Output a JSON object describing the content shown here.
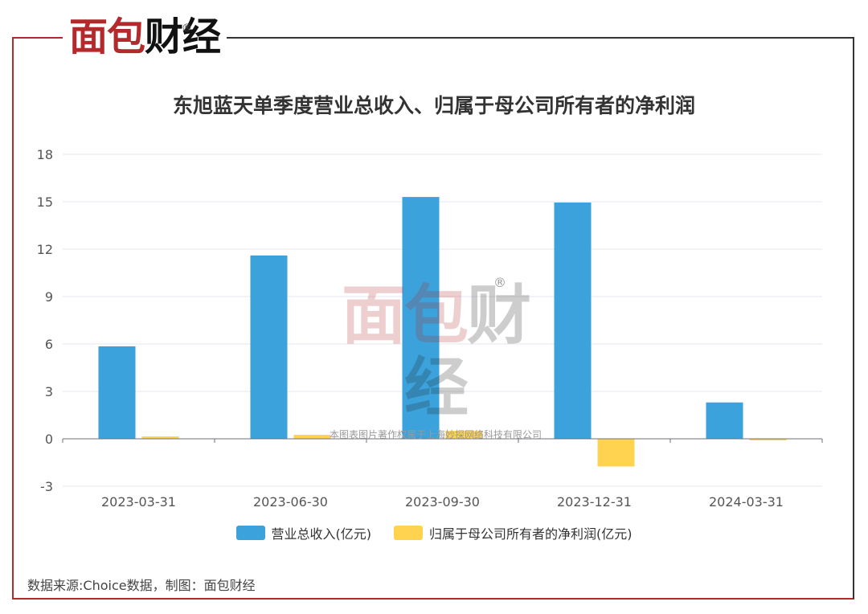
{
  "brand": {
    "logo_part1": "面包",
    "logo_part2": "财经",
    "registered": "®"
  },
  "watermark": {
    "logo_part1": "面包",
    "logo_part2": "财经",
    "registered": "®",
    "copyright": "本图表图片著作权属于上海妙探网络科技有限公司"
  },
  "source_note": "数据来源:Choice数据，制图：面包财经",
  "colors": {
    "revenue": "#3ba2dc",
    "net_profit": "#ffd350",
    "brand_red": "#b3292c"
  },
  "chart_data": {
    "type": "bar",
    "title": "东旭蓝天单季度营业总收入、归属于母公司所有者的净利润",
    "xlabel": "",
    "ylabel": "",
    "categories": [
      "2023-03-31",
      "2023-06-30",
      "2023-09-30",
      "2023-12-31",
      "2024-03-31"
    ],
    "series": [
      {
        "name": "营业总收入(亿元)",
        "values": [
          5.85,
          11.6,
          15.3,
          14.95,
          2.3
        ]
      },
      {
        "name": "归属于母公司所有者的净利润(亿元)",
        "values": [
          0.15,
          0.25,
          0.5,
          -1.75,
          -0.1
        ]
      }
    ],
    "ylim": [
      -3,
      18
    ],
    "yticks": [
      -3,
      0,
      3,
      6,
      9,
      12,
      15,
      18
    ],
    "grid": true,
    "legend": "bottom-center"
  }
}
